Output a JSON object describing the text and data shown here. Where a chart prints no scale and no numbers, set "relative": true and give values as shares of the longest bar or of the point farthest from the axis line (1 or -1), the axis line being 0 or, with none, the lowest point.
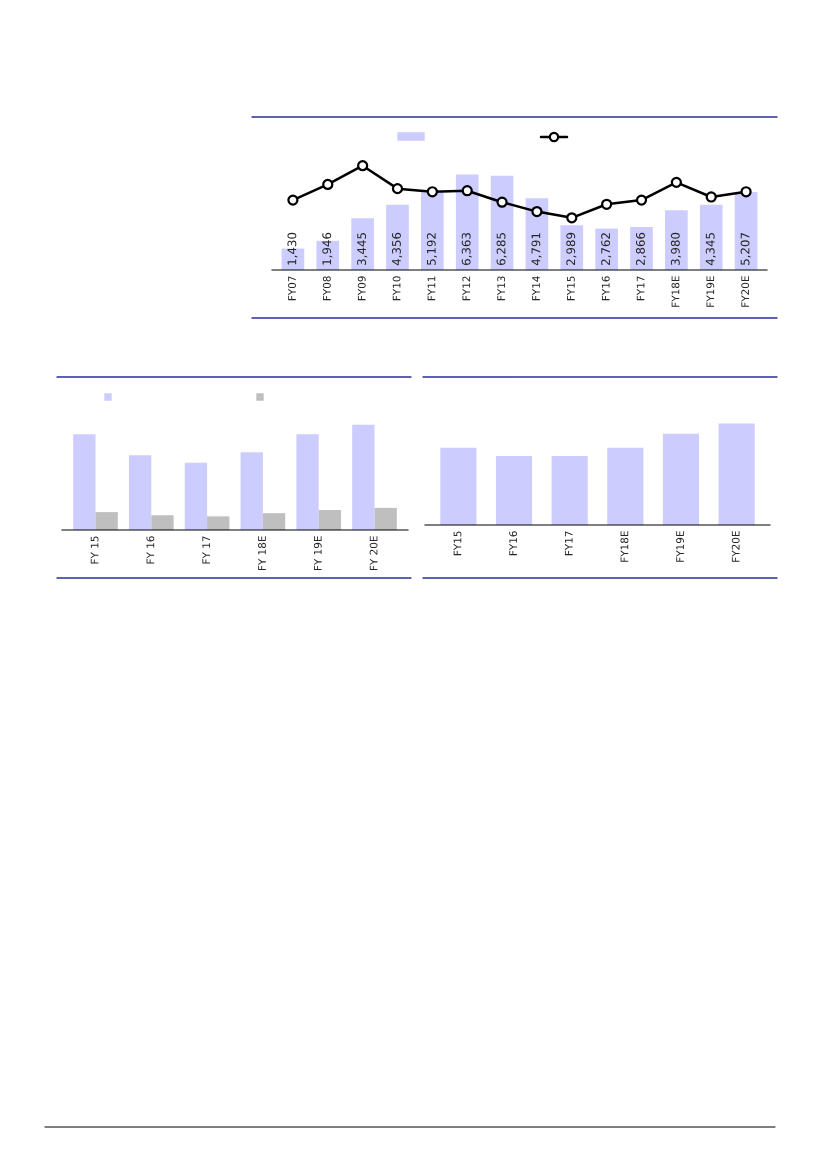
{
  "chart_data": [
    {
      "type": "bar",
      "categories": [
        "FY07",
        "FY08",
        "FY09",
        "FY10",
        "FY11",
        "FY12",
        "FY13",
        "FY14",
        "FY15",
        "FY16",
        "FY17",
        "FY18E",
        "FY19E",
        "FY20E"
      ],
      "marker": "circle",
      "series": [
        {
          "type": "bar",
          "color": "#ccccff",
          "values": [
            1430,
            1946,
            3445,
            4356,
            5192,
            6363,
            6285,
            4791,
            2989,
            2762,
            2866,
            3980,
            4345,
            5207
          ],
          "value_labels": [
            "1,430",
            "1,946",
            "3,445",
            "4,356",
            "5,192",
            "6,363",
            "6,285",
            "4,791",
            "2,989",
            "2,762",
            "2,866",
            "3,980",
            "4,345",
            "5,207"
          ]
        }
      ]
    },
    {
      "type": "line",
      "relative": true,
      "marker": "circle",
      "categories": [
        null,
        null,
        null,
        null,
        null,
        null,
        null,
        null,
        null,
        null,
        null,
        null,
        null,
        null
      ],
      "series": [
        {
          "color": "#000000",
          "values": [
            0.67,
            0.82,
            1.0,
            0.78,
            0.75,
            0.76,
            0.65,
            0.56,
            0.5,
            0.63,
            0.67,
            0.84,
            0.7,
            0.75
          ]
        }
      ]
    },
    {
      "type": "bar",
      "relative": true,
      "categories": [
        "FY 15",
        "FY 16",
        "FY 17",
        "FY 18E",
        "FY 19E",
        "FY 20E"
      ],
      "series": [
        {
          "color": "#ccccff",
          "values": [
            0.91,
            0.71,
            0.64,
            0.74,
            0.91,
            1.0
          ]
        },
        {
          "color": "#bfbfbf",
          "values": [
            0.17,
            0.14,
            0.13,
            0.16,
            0.19,
            0.21
          ]
        }
      ]
    },
    {
      "type": "bar",
      "relative": true,
      "categories": [
        "FY15",
        "FY16",
        "FY17",
        "FY18E",
        "FY19E",
        "FY20E"
      ],
      "series": [
        {
          "color": "#ccccff",
          "values": [
            0.76,
            0.68,
            0.68,
            0.76,
            0.9,
            1.0
          ]
        }
      ]
    }
  ]
}
